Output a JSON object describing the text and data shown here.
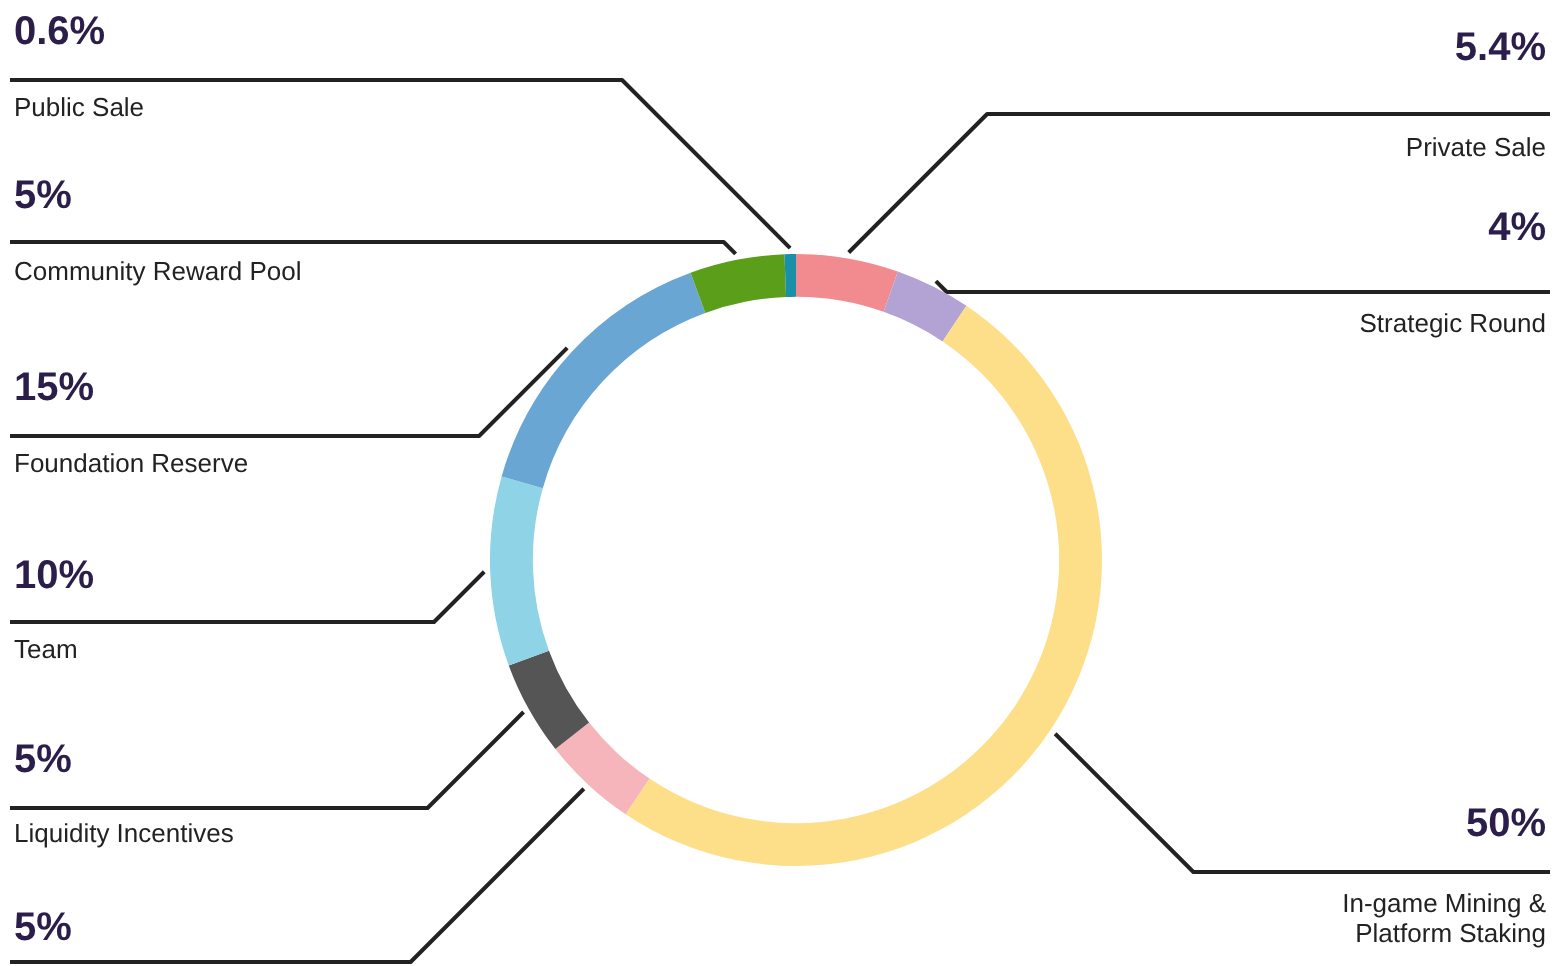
{
  "chart_data": {
    "type": "donut",
    "categories": [
      "Private Sale",
      "Strategic Round",
      "In-game Mining & Platform Staking",
      null,
      "Liquidity Incentives",
      "Team",
      "Foundation Reserve",
      "Community Reward Pool",
      "Public Sale"
    ],
    "values": [
      5.4,
      4,
      50,
      5,
      5,
      10,
      15,
      5,
      0.6
    ],
    "value_labels": [
      "5.4%",
      "4%",
      "50%",
      "5%",
      "5%",
      "10%",
      "15%",
      "5%",
      "0.6%"
    ],
    "colors": [
      "#f28b8f",
      "#b3a3d4",
      "#fddf8a",
      "#f5b5bb",
      "#555555",
      "#8ed3e6",
      "#69a6d4",
      "#5a9e1a",
      "#1a8fa8"
    ],
    "legend": false
  }
}
